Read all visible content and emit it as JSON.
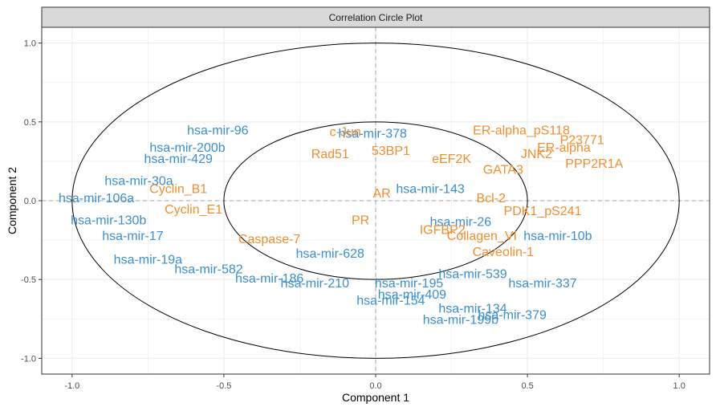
{
  "chart_data": {
    "type": "scatter",
    "title": "Correlation Circle Plot",
    "xlabel": "Component  1",
    "ylabel": "Component  2",
    "xlim": [
      -1.1,
      1.1
    ],
    "ylim": [
      -1.1,
      1.1
    ],
    "x_ticks": [
      "-1.0",
      "-0.5",
      "0.0",
      "0.5",
      "1.0"
    ],
    "x_tick_values": [
      -1.0,
      -0.5,
      0.0,
      0.5,
      1.0
    ],
    "y_ticks": [
      "-1.0",
      "-0.5",
      "0.0",
      "0.5",
      "1.0"
    ],
    "y_tick_values": [
      -1.0,
      -0.5,
      0.0,
      0.5,
      1.0
    ],
    "grid": true,
    "reference_lines": {
      "x": 0,
      "y": 0,
      "style": "dashed"
    },
    "circles": [
      {
        "name": "outer",
        "radius": 1.0
      },
      {
        "name": "inner",
        "radius": 0.5
      }
    ],
    "series": [
      {
        "color": "#3A8FD0",
        "points": [
          {
            "x": -0.52,
            "y": 0.45,
            "label": "hsa-mir-96"
          },
          {
            "x": -0.01,
            "y": 0.43,
            "label": "hsa-mir-378"
          },
          {
            "x": -0.62,
            "y": 0.34,
            "label": "hsa-mir-200b"
          },
          {
            "x": -0.65,
            "y": 0.27,
            "label": "hsa-mir-429"
          },
          {
            "x": -0.78,
            "y": 0.13,
            "label": "hsa-mir-30a"
          },
          {
            "x": -0.92,
            "y": 0.02,
            "label": "hsa-mir-106a"
          },
          {
            "x": -0.88,
            "y": -0.12,
            "label": "hsa-mir-130b"
          },
          {
            "x": -0.8,
            "y": -0.22,
            "label": "hsa-mir-17"
          },
          {
            "x": -0.75,
            "y": -0.37,
            "label": "hsa-mir-19a"
          },
          {
            "x": -0.55,
            "y": -0.43,
            "label": "hsa-mir-582"
          },
          {
            "x": -0.35,
            "y": -0.49,
            "label": "hsa-mir-186"
          },
          {
            "x": -0.2,
            "y": -0.52,
            "label": "hsa-mir-210"
          },
          {
            "x": -0.15,
            "y": -0.33,
            "label": "hsa-mir-628"
          },
          {
            "x": 0.11,
            "y": -0.52,
            "label": "hsa-mir-195"
          },
          {
            "x": 0.32,
            "y": -0.46,
            "label": "hsa-mir-539"
          },
          {
            "x": 0.55,
            "y": -0.52,
            "label": "hsa-mir-337"
          },
          {
            "x": 0.12,
            "y": -0.59,
            "label": "hsa-mir-409"
          },
          {
            "x": 0.05,
            "y": -0.63,
            "label": "hsa-mir-154"
          },
          {
            "x": 0.32,
            "y": -0.68,
            "label": "hsa-mir-134"
          },
          {
            "x": 0.45,
            "y": -0.72,
            "label": "hsa-mir-379"
          },
          {
            "x": 0.28,
            "y": -0.75,
            "label": "hsa-mir-199b"
          },
          {
            "x": 0.6,
            "y": -0.22,
            "label": "hsa-mir-10b"
          },
          {
            "x": 0.18,
            "y": 0.08,
            "label": "hsa-mir-143"
          },
          {
            "x": 0.28,
            "y": -0.13,
            "label": "hsa-mir-26"
          }
        ]
      },
      {
        "color": "#F28E2C",
        "points": [
          {
            "x": -0.1,
            "y": 0.44,
            "label": "c-Jun"
          },
          {
            "x": 0.48,
            "y": 0.45,
            "label": "ER-alpha_pS118"
          },
          {
            "x": 0.68,
            "y": 0.39,
            "label": "P23771"
          },
          {
            "x": 0.62,
            "y": 0.34,
            "label": "ER-alpha"
          },
          {
            "x": 0.53,
            "y": 0.3,
            "label": "JNK2"
          },
          {
            "x": 0.72,
            "y": 0.24,
            "label": "PPP2R1A"
          },
          {
            "x": 0.42,
            "y": 0.2,
            "label": "GATA3"
          },
          {
            "x": 0.05,
            "y": 0.32,
            "label": "53BP1"
          },
          {
            "x": -0.15,
            "y": 0.3,
            "label": "Rad51"
          },
          {
            "x": 0.25,
            "y": 0.27,
            "label": "eEF2K"
          },
          {
            "x": -0.65,
            "y": 0.08,
            "label": "Cyclin_B1"
          },
          {
            "x": -0.6,
            "y": -0.05,
            "label": "Cyclin_E1"
          },
          {
            "x": -0.35,
            "y": -0.24,
            "label": "Caspase-7"
          },
          {
            "x": 0.42,
            "y": -0.32,
            "label": "Caveolin-1"
          },
          {
            "x": 0.35,
            "y": -0.22,
            "label": "Collagen_VI"
          },
          {
            "x": 0.55,
            "y": -0.06,
            "label": "PDK1_pS241"
          },
          {
            "x": 0.38,
            "y": 0.02,
            "label": "Bcl-2"
          },
          {
            "x": 0.02,
            "y": 0.05,
            "label": "AR"
          },
          {
            "x": -0.05,
            "y": -0.12,
            "label": "PR"
          },
          {
            "x": 0.22,
            "y": -0.18,
            "label": "IGFBP2"
          }
        ]
      }
    ]
  }
}
